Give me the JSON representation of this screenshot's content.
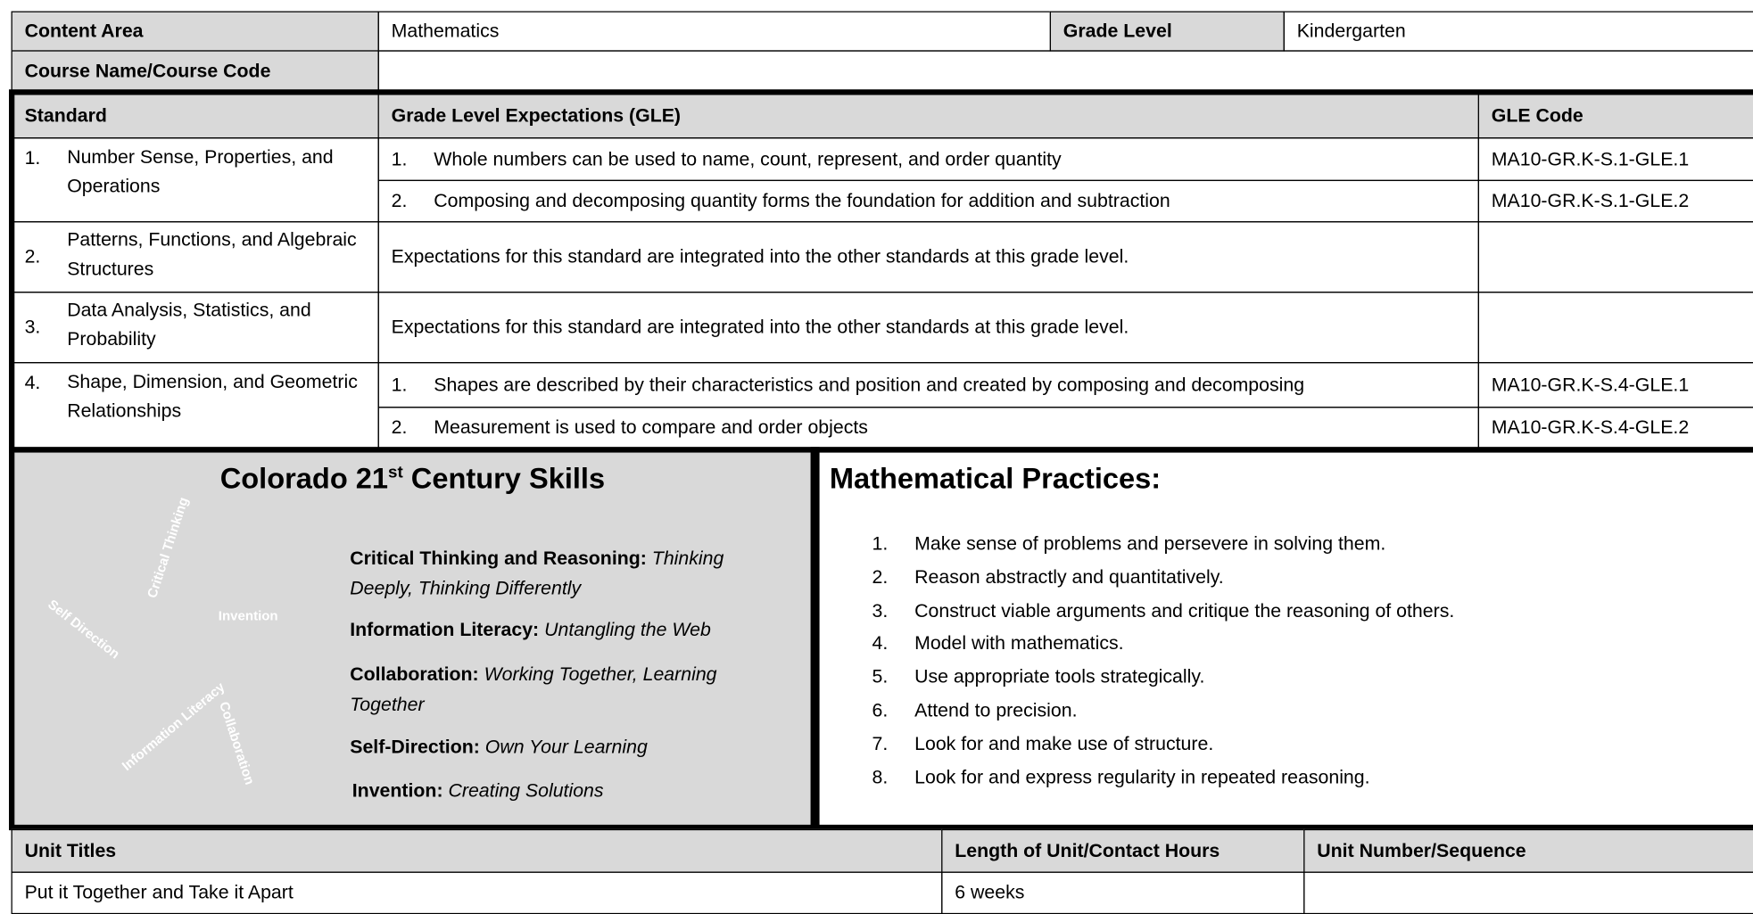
{
  "header": {
    "content_area_label": "Content Area",
    "content_area": "Mathematics",
    "grade_level_label": "Grade Level",
    "grade_level": "Kindergarten",
    "course_label": "Course Name/Course Code"
  },
  "standards_table": {
    "headers": [
      "Standard",
      "Grade Level Expectations (GLE)",
      "GLE Code"
    ],
    "rows": [
      {
        "number": "1.",
        "standard": "Number Sense, Properties, and Operations",
        "gles": [
          {
            "number": "1.",
            "text": "Whole numbers can be used to name, count, represent, and order quantity",
            "code": "MA10-GR.K-S.1-GLE.1"
          },
          {
            "number": "2.",
            "text": "Composing and decomposing quantity forms the foundation for addition and subtraction",
            "code": "MA10-GR.K-S.1-GLE.2"
          }
        ]
      },
      {
        "number": "2.",
        "standard": "Patterns, Functions, and Algebraic Structures",
        "note": "Expectations for this standard are integrated into the other standards at this grade level."
      },
      {
        "number": "3.",
        "standard": "Data Analysis, Statistics, and Probability",
        "note": "Expectations for this standard are integrated into the other standards at this grade level."
      },
      {
        "number": "4.",
        "standard": "Shape, Dimension, and Geometric Relationships",
        "gles": [
          {
            "number": "1.",
            "text": "Shapes are described by their characteristics and position and created by composing and decomposing",
            "code": "MA10-GR.K-S.4-GLE.1"
          },
          {
            "number": "2.",
            "text": "Measurement is used to compare and order objects",
            "code": "MA10-GR.K-S.4-GLE.2"
          }
        ]
      }
    ]
  },
  "skills": {
    "title_pre": "Colorado 21",
    "title_sup": "st",
    "title_post": "Century Skills",
    "graphic_labels": [
      "Critical Thinking",
      "Invention",
      "Self Direction",
      "Information Literacy",
      "Collaboration"
    ],
    "items": [
      {
        "name": "Critical Thinking and Reasoning:",
        "desc": "Thinking Deeply, Thinking Differently"
      },
      {
        "name": "Information Literacy:",
        "desc": "Untangling the Web"
      },
      {
        "name": "Collaboration:",
        "desc": "Working Together, Learning Together"
      },
      {
        "name": "Self-Direction:",
        "desc": "Own Your Learning"
      },
      {
        "name": "Invention:",
        "desc": "Creating Solutions"
      }
    ]
  },
  "practices": {
    "title": "Mathematical Practices:",
    "items": [
      {
        "number": "1.",
        "text": "Make sense of problems and persevere in solving them."
      },
      {
        "number": "2.",
        "text": "Reason abstractly and quantitatively."
      },
      {
        "number": "3.",
        "text": "Construct viable arguments and critique the reasoning of others."
      },
      {
        "number": "4.",
        "text": "Model with mathematics."
      },
      {
        "number": "5.",
        "text": "Use appropriate tools strategically."
      },
      {
        "number": "6.",
        "text": "Attend to precision."
      },
      {
        "number": "7.",
        "text": "Look for and make use of structure."
      },
      {
        "number": "8.",
        "text": "Look for and express regularity in repeated reasoning."
      }
    ]
  },
  "units": {
    "headers": [
      "Unit Titles",
      "Length of Unit/Contact Hours",
      "Unit Number/Sequence"
    ],
    "rows": [
      [
        "Put it Together and Take it Apart",
        "6 weeks"
      ]
    ]
  }
}
